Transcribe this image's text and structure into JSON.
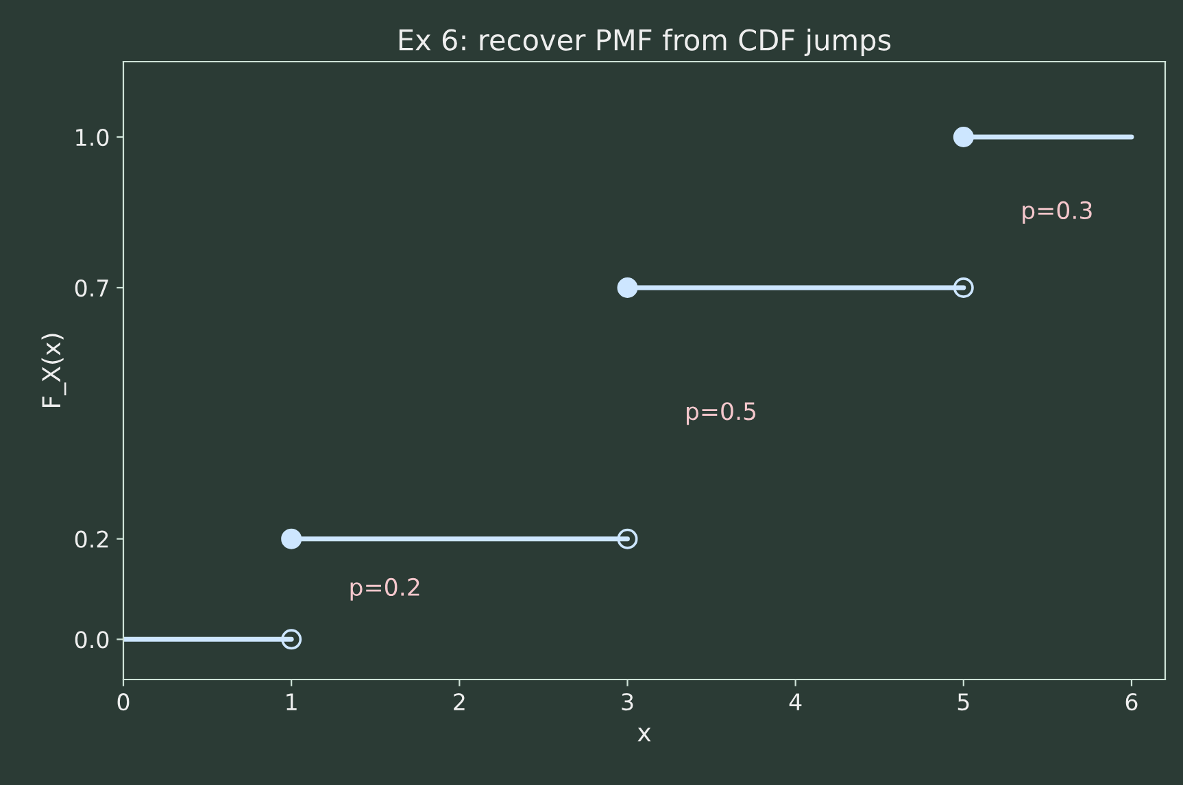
{
  "chart_data": {
    "type": "step",
    "title": "Ex 6: recover PMF from CDF jumps",
    "xlabel": "x",
    "ylabel": "F_X(x)",
    "xlim": [
      0,
      6.2
    ],
    "xticks": [
      0,
      1,
      2,
      3,
      4,
      5,
      6
    ],
    "ylim": [
      -0.08,
      1.15
    ],
    "yticks": [
      {
        "value": 0,
        "label": "0.0"
      },
      {
        "value": 0.2,
        "label": "0.2"
      },
      {
        "value": 0.7,
        "label": "0.7"
      },
      {
        "value": 1.0,
        "label": "1.0"
      }
    ],
    "grid": false,
    "marker": "circle",
    "series": [
      {
        "color": "#cde6ff",
        "x": [
          0,
          1,
          3,
          5,
          6
        ],
        "values": [
          0,
          0.2,
          0.7,
          1.0,
          1.0
        ]
      },
      {
        "type": "scatter",
        "color": "#cde6ff",
        "x": [
          1,
          3,
          5
        ],
        "values": [
          0,
          0.2,
          0.7
        ]
      }
    ],
    "annotations": [
      "p=0.2",
      "p=0.5",
      "p=0.3"
    ]
  }
}
